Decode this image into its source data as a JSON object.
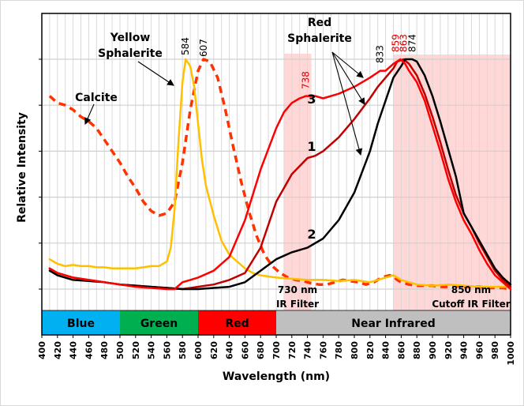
{
  "chart_data": {
    "type": "line",
    "title": "",
    "xlabel": "Wavelength (nm)",
    "ylabel": "Relative Intensity",
    "xlim": [
      400,
      1000
    ],
    "ylim": [
      0,
      1.0
    ],
    "x_ticks": [
      400,
      420,
      440,
      460,
      480,
      500,
      520,
      540,
      560,
      580,
      600,
      620,
      640,
      660,
      680,
      700,
      720,
      740,
      760,
      780,
      800,
      820,
      840,
      860,
      880,
      900,
      920,
      940,
      960,
      980,
      1000
    ],
    "y_gridlines": [
      0,
      0.2,
      0.4,
      0.6,
      0.8,
      1.0
    ],
    "y_tick_labels_shown": false,
    "grid": true,
    "spectral_bands": [
      {
        "label": "Blue",
        "from": 400,
        "to": 500,
        "color": "#00b0f0"
      },
      {
        "label": "Green",
        "from": 500,
        "to": 600,
        "color": "#00b050"
      },
      {
        "label": "Red",
        "from": 600,
        "to": 700,
        "color": "#ff0000"
      },
      {
        "label": "Near Infrared",
        "from": 700,
        "to": 1000,
        "color": "#bfbfbf"
      }
    ],
    "filter_regions": [
      {
        "label_line1": "730 nm",
        "label_line2": "IR Filter",
        "from": 710,
        "to": 745,
        "color": "#ffd3d3"
      },
      {
        "label_line1": "850 nm",
        "label_line2": "Cutoff IR Filter",
        "from": 850,
        "to": 1000,
        "color": "#ffd3d3"
      }
    ],
    "series": [
      {
        "name": "Calcite",
        "color": "#ff3300",
        "style": "dashed",
        "peak_label": "607",
        "x": [
          410,
          420,
          430,
          440,
          450,
          460,
          470,
          480,
          490,
          500,
          510,
          520,
          530,
          540,
          550,
          560,
          570,
          580,
          590,
          600,
          607,
          615,
          625,
          635,
          645,
          655,
          665,
          675,
          685,
          695,
          705,
          715,
          725,
          735,
          745,
          755,
          765,
          775,
          785,
          795,
          805,
          815,
          825,
          835,
          845,
          850,
          855,
          860,
          870,
          880,
          890,
          900,
          910,
          920,
          930,
          940,
          950,
          960,
          970,
          980,
          990,
          1000
        ],
        "y": [
          0.84,
          0.81,
          0.8,
          0.78,
          0.75,
          0.73,
          0.7,
          0.65,
          0.6,
          0.55,
          0.49,
          0.44,
          0.38,
          0.34,
          0.32,
          0.33,
          0.38,
          0.55,
          0.78,
          0.95,
          1.0,
          0.99,
          0.92,
          0.78,
          0.62,
          0.47,
          0.34,
          0.23,
          0.15,
          0.1,
          0.07,
          0.05,
          0.04,
          0.035,
          0.025,
          0.02,
          0.02,
          0.03,
          0.04,
          0.035,
          0.03,
          0.02,
          0.03,
          0.05,
          0.06,
          0.055,
          0.04,
          0.03,
          0.02,
          0.015,
          0.015,
          0.015,
          0.01,
          0.01,
          0.015,
          0.01,
          0.01,
          0.01,
          0.005,
          0.005,
          0.005,
          0.0
        ]
      },
      {
        "name": "Yellow Sphalerite",
        "color": "#ffc000",
        "style": "solid",
        "peak_label": "584",
        "x": [
          410,
          420,
          430,
          440,
          450,
          460,
          470,
          480,
          490,
          500,
          510,
          520,
          530,
          540,
          550,
          560,
          565,
          570,
          575,
          580,
          584,
          590,
          595,
          600,
          605,
          610,
          620,
          630,
          640,
          650,
          660,
          670,
          680,
          690,
          700,
          720,
          740,
          760,
          780,
          800,
          820,
          840,
          850,
          860,
          870,
          880,
          900,
          920,
          940,
          960,
          980,
          1000
        ],
        "y": [
          0.13,
          0.11,
          0.1,
          0.105,
          0.1,
          0.1,
          0.095,
          0.095,
          0.09,
          0.09,
          0.09,
          0.09,
          0.095,
          0.1,
          0.1,
          0.12,
          0.18,
          0.35,
          0.65,
          0.9,
          1.0,
          0.97,
          0.88,
          0.72,
          0.56,
          0.45,
          0.32,
          0.21,
          0.15,
          0.12,
          0.09,
          0.07,
          0.06,
          0.055,
          0.05,
          0.045,
          0.04,
          0.04,
          0.035,
          0.04,
          0.03,
          0.05,
          0.06,
          0.04,
          0.03,
          0.02,
          0.015,
          0.02,
          0.015,
          0.01,
          0.01,
          0.01
        ]
      },
      {
        "name": "Red Sphalerite 1",
        "color": "#c00000",
        "style": "solid",
        "label": "1",
        "peak_label": "863",
        "x": [
          410,
          420,
          440,
          460,
          480,
          500,
          520,
          540,
          560,
          580,
          600,
          620,
          640,
          660,
          680,
          700,
          720,
          740,
          750,
          760,
          780,
          800,
          820,
          830,
          840,
          850,
          855,
          863,
          870,
          880,
          890,
          900,
          910,
          920,
          930,
          940,
          950,
          960,
          970,
          980,
          990,
          1000
        ],
        "y": [
          0.09,
          0.07,
          0.05,
          0.04,
          0.03,
          0.02,
          0.015,
          0.01,
          0.005,
          0.0,
          0.01,
          0.02,
          0.04,
          0.07,
          0.18,
          0.38,
          0.5,
          0.57,
          0.58,
          0.6,
          0.66,
          0.74,
          0.83,
          0.88,
          0.92,
          0.96,
          0.99,
          1.0,
          0.98,
          0.93,
          0.85,
          0.75,
          0.64,
          0.52,
          0.41,
          0.33,
          0.27,
          0.2,
          0.14,
          0.08,
          0.04,
          0.01
        ]
      },
      {
        "name": "Red Sphalerite 2",
        "color": "#000000",
        "style": "solid",
        "label": "2",
        "peak_label": "874",
        "x": [
          410,
          420,
          440,
          460,
          480,
          500,
          520,
          540,
          560,
          580,
          600,
          620,
          640,
          660,
          680,
          700,
          720,
          740,
          760,
          780,
          800,
          820,
          830,
          840,
          850,
          860,
          865,
          874,
          880,
          890,
          900,
          910,
          920,
          930,
          940,
          950,
          960,
          970,
          980,
          990,
          1000
        ],
        "y": [
          0.08,
          0.06,
          0.04,
          0.035,
          0.03,
          0.02,
          0.015,
          0.01,
          0.005,
          0.0,
          0.0,
          0.005,
          0.01,
          0.03,
          0.08,
          0.13,
          0.16,
          0.18,
          0.22,
          0.3,
          0.42,
          0.6,
          0.72,
          0.82,
          0.92,
          0.97,
          1.0,
          1.0,
          0.99,
          0.93,
          0.84,
          0.73,
          0.61,
          0.49,
          0.33,
          0.27,
          0.21,
          0.15,
          0.09,
          0.05,
          0.02
        ]
      },
      {
        "name": "Red Sphalerite 3",
        "color": "#ff0000",
        "style": "solid",
        "label": "3",
        "peak_label": "859",
        "secondary_peak_labels": [
          "738",
          "833"
        ],
        "x": [
          410,
          420,
          440,
          460,
          480,
          500,
          520,
          540,
          560,
          570,
          580,
          590,
          600,
          620,
          640,
          660,
          680,
          700,
          710,
          720,
          730,
          738,
          750,
          760,
          780,
          800,
          820,
          833,
          840,
          850,
          859,
          865,
          870,
          880,
          890,
          900,
          910,
          920,
          930,
          940,
          950,
          960,
          970,
          980,
          990,
          1000
        ],
        "y": [
          0.09,
          0.07,
          0.05,
          0.04,
          0.03,
          0.02,
          0.01,
          0.005,
          0.0,
          0.0,
          0.03,
          0.04,
          0.05,
          0.08,
          0.14,
          0.3,
          0.52,
          0.7,
          0.77,
          0.81,
          0.83,
          0.84,
          0.84,
          0.83,
          0.85,
          0.88,
          0.92,
          0.95,
          0.95,
          0.98,
          1.0,
          0.98,
          0.95,
          0.9,
          0.82,
          0.71,
          0.6,
          0.48,
          0.38,
          0.3,
          0.24,
          0.17,
          0.11,
          0.06,
          0.03,
          0.0
        ]
      }
    ],
    "annotations": [
      {
        "text_lines": [
          "Yellow",
          "Sphalerite"
        ],
        "points_to": "Yellow Sphalerite"
      },
      {
        "text_lines": [
          "Calcite"
        ],
        "points_to": "Calcite"
      },
      {
        "text_lines": [
          "Red",
          "Sphalerite"
        ],
        "points_to": [
          "Red Sphalerite 3",
          "Red Sphalerite 1",
          "Red Sphalerite 2"
        ]
      }
    ],
    "peak_labels": [
      {
        "text": "584",
        "x": 584,
        "color": "#000000"
      },
      {
        "text": "607",
        "x": 607,
        "color": "#000000"
      },
      {
        "text": "738",
        "x": 738,
        "color": "#e00000"
      },
      {
        "text": "833",
        "x": 833,
        "color": "#000000"
      },
      {
        "text": "859",
        "x": 853,
        "color": "#e00000"
      },
      {
        "text": "863",
        "x": 863,
        "color": "#c00000"
      },
      {
        "text": "874",
        "x": 874,
        "color": "#000000"
      }
    ]
  }
}
